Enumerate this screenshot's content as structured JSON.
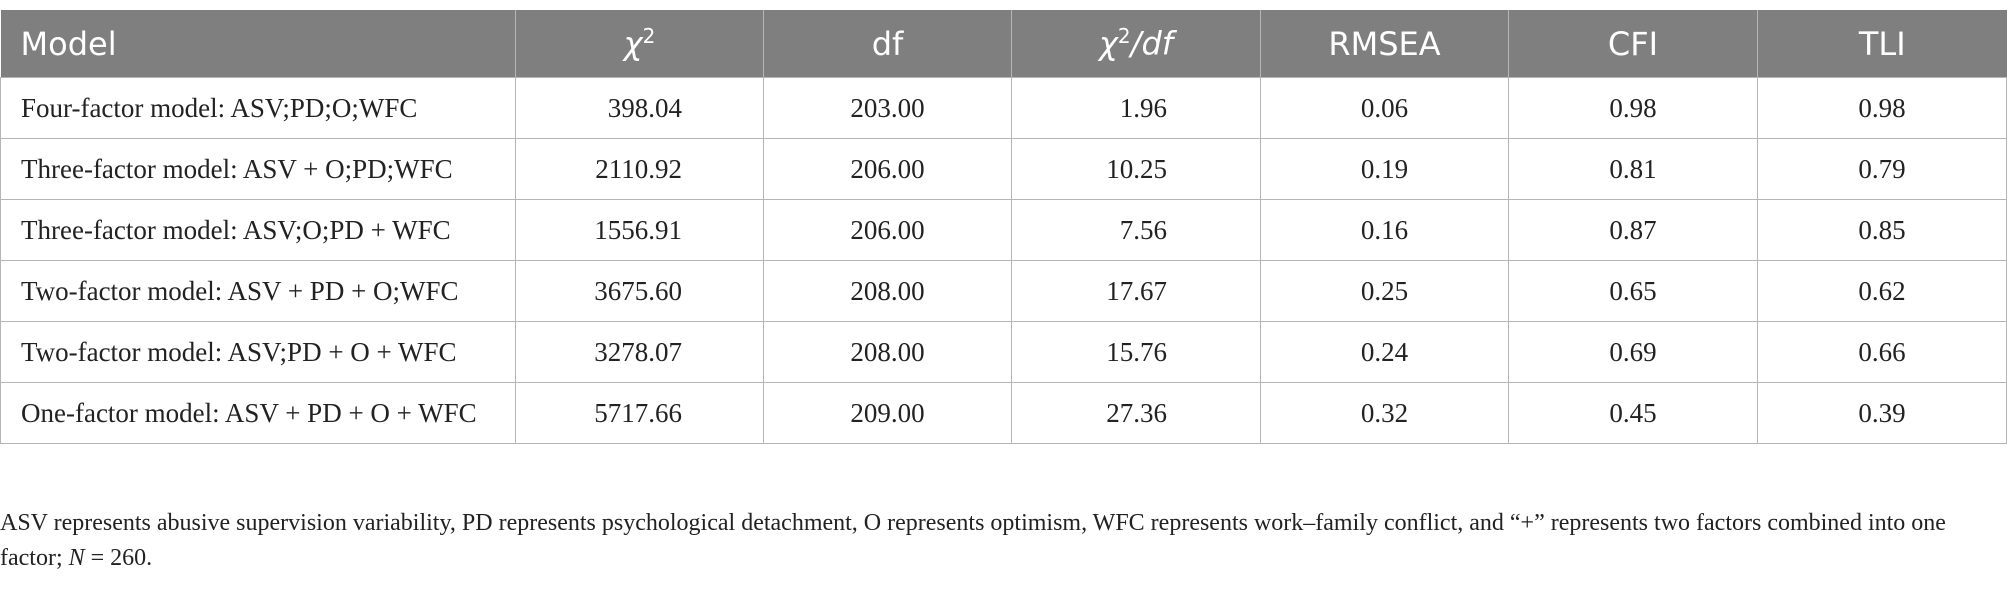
{
  "table": {
    "header": [
      "Model",
      {
        "symbol": "χ",
        "sup": "2"
      },
      "df",
      {
        "symbol": "χ",
        "sup": "2",
        "rest": "/df"
      },
      "RMSEA",
      "CFI",
      "TLI"
    ],
    "rows": [
      [
        "Four-factor model: ASV;PD;O;WFC",
        "398.04",
        "203.00",
        "1.96",
        "0.06",
        "0.98",
        "0.98"
      ],
      [
        "Three-factor model: ASV + O;PD;WFC",
        "2110.92",
        "206.00",
        "10.25",
        "0.19",
        "0.81",
        "0.79"
      ],
      [
        "Three-factor model: ASV;O;PD + WFC",
        "1556.91",
        "206.00",
        "7.56",
        "0.16",
        "0.87",
        "0.85"
      ],
      [
        "Two-factor model: ASV + PD + O;WFC",
        "3675.60",
        "208.00",
        "17.67",
        "0.25",
        "0.65",
        "0.62"
      ],
      [
        "Two-factor model: ASV;PD + O + WFC",
        "3278.07",
        "208.00",
        "15.76",
        "0.24",
        "0.69",
        "0.66"
      ],
      [
        "One-factor model: ASV + PD + O + WFC",
        "5717.66",
        "209.00",
        "27.36",
        "0.32",
        "0.45",
        "0.39"
      ]
    ]
  },
  "footnote": {
    "text": "ASV represents abusive supervision variability, PD represents psychological detachment, O represents optimism, WFC represents work–family conflict, and “+” represents two factors combined into one factor; ",
    "italic": "N",
    "rest": " = 260."
  }
}
